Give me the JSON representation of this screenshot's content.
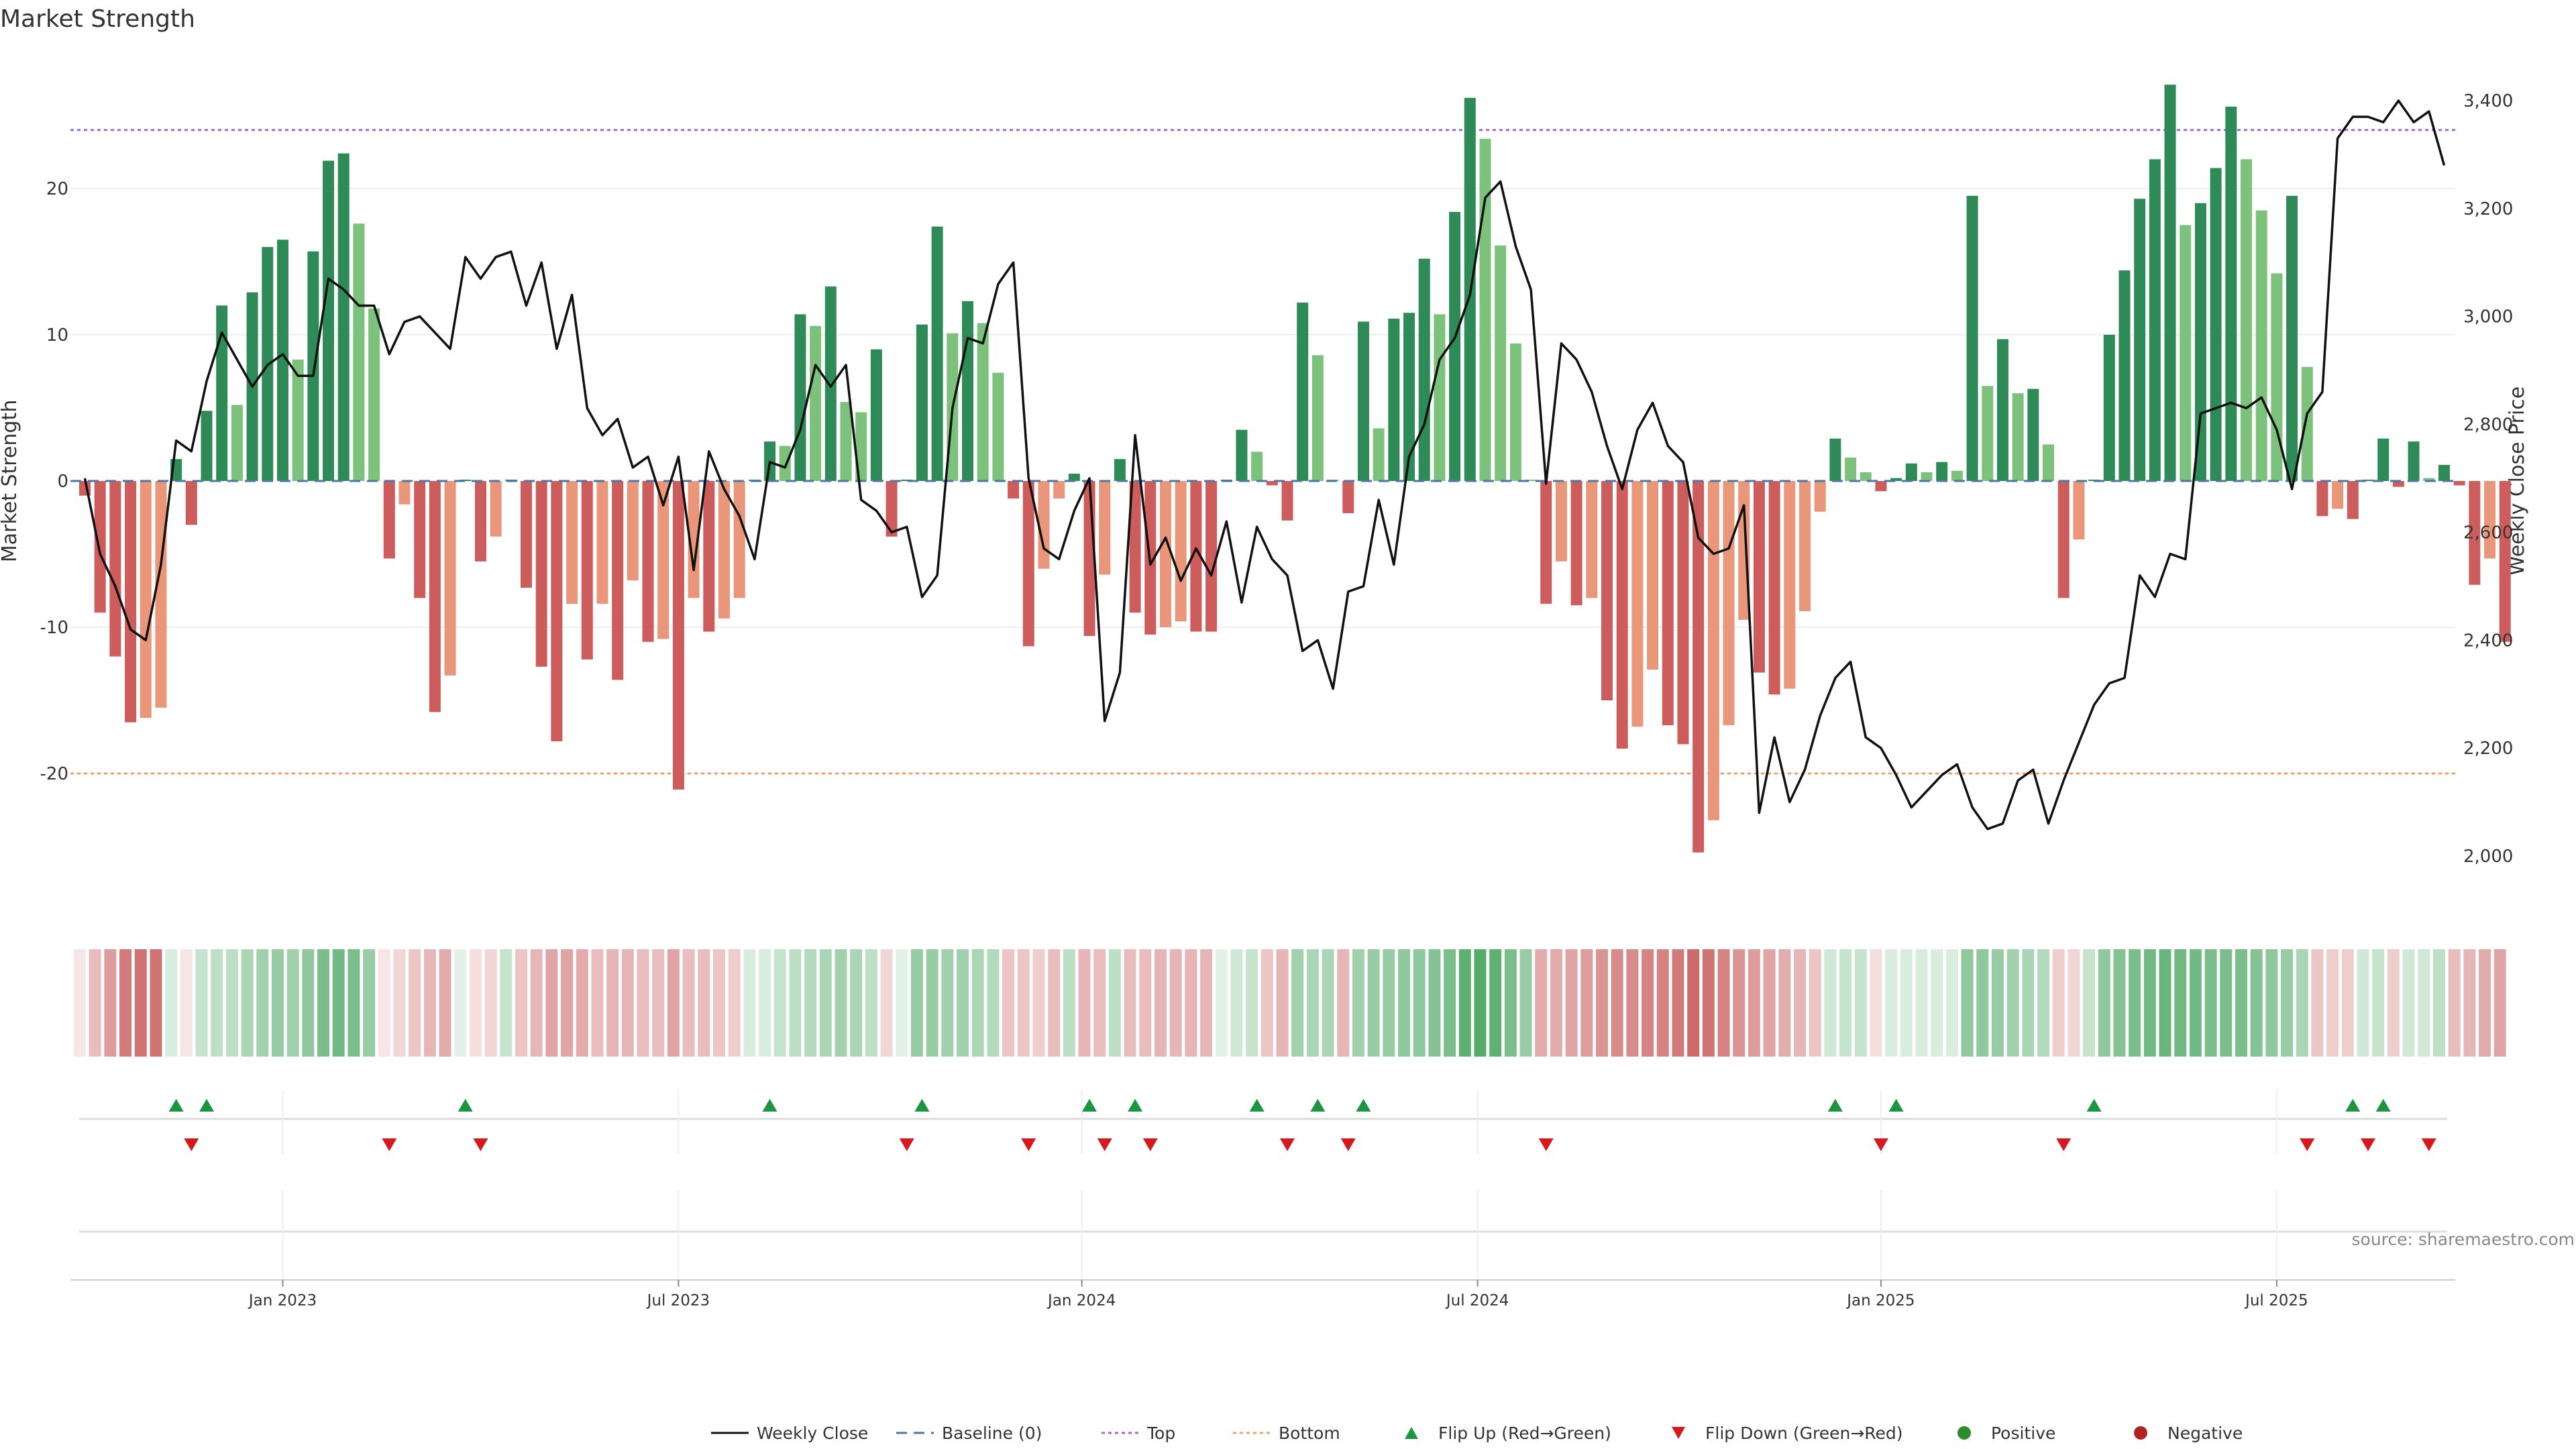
{
  "chart_data": {
    "type": "bar",
    "title": "Market Strength",
    "ylabel_left": "Market Strength",
    "ylabel_right": "Weekly Close Price",
    "ylim_left": [
      -29,
      29
    ],
    "ylim_right": [
      1890,
      3460
    ],
    "yticks_left": [
      -20,
      -10,
      0,
      10,
      20
    ],
    "yticks_left_labels": [
      "-20",
      "-10",
      "0",
      "10",
      "20"
    ],
    "yticks_right": [
      2000,
      2200,
      2400,
      2600,
      2800,
      3000,
      3200,
      3400
    ],
    "yticks_right_labels": [
      "2,000",
      "2,200",
      "2,400",
      "2,600",
      "2,800",
      "3,000",
      "3,200",
      "3,400"
    ],
    "x_ticks": [
      {
        "index": 13,
        "label": "Jan 2023"
      },
      {
        "index": 39,
        "label": "Jul 2023"
      },
      {
        "index": 65.5,
        "label": "Jan 2024"
      },
      {
        "index": 91.5,
        "label": "Jul 2024"
      },
      {
        "index": 118,
        "label": "Jan 2025"
      },
      {
        "index": 144,
        "label": "Jul 2025"
      }
    ],
    "reference_lines": {
      "top": 24,
      "bottom": -20,
      "baseline": 0
    },
    "strength": [
      -1,
      -9,
      -12,
      -16.5,
      -16.2,
      -15.5,
      1.5,
      -3,
      4.8,
      12,
      5.2,
      12.9,
      16,
      16.5,
      8.3,
      15.7,
      21.9,
      22.4,
      17.6,
      11.8,
      -5.3,
      -1.6,
      -8,
      -15.8,
      -13.3,
      0,
      -5.5,
      -3.8,
      0,
      -7.3,
      -12.7,
      -17.8,
      -8.4,
      -12.2,
      -8.4,
      -13.6,
      -6.8,
      -11,
      -10.8,
      -21.1,
      -8,
      -10.3,
      -9.4,
      -8,
      0,
      2.7,
      2.4,
      11.4,
      10.6,
      13.3,
      5.4,
      4.7,
      9,
      -3.8,
      0,
      10.7,
      17.4,
      10.1,
      12.3,
      10.8,
      7.4,
      -1.2,
      -11.3,
      -6,
      -1.2,
      0.5,
      -10.6,
      -6.4,
      1.5,
      -9,
      -10.5,
      -10,
      -9.6,
      -10.3,
      -10.3,
      0,
      3.5,
      2,
      -0.3,
      -2.7,
      12.2,
      8.6,
      0,
      -2.2,
      10.9,
      3.6,
      11.1,
      11.5,
      15.2,
      11.4,
      18.4,
      26.2,
      23.4,
      16.1,
      9.4,
      0,
      -8.4,
      -5.5,
      -8.5,
      -8,
      -15,
      -18.3,
      -16.8,
      -12.9,
      -16.7,
      -18,
      -25.4,
      -23.2,
      -16.7,
      -9.5,
      -13.1,
      -14.6,
      -14.2,
      -8.9,
      -2.1,
      2.9,
      1.6,
      0.6,
      -0.7,
      0.2,
      1.2,
      0.6,
      1.3,
      0.7,
      19.5,
      6.5,
      9.7,
      6,
      6.3,
      2.5,
      -8,
      -4,
      0,
      10,
      14.4,
      19.3,
      22,
      27.1,
      17.5,
      19,
      21.4,
      25.6,
      22,
      18.5,
      14.2,
      19.5,
      7.8,
      -2.4,
      -1.9,
      -2.6,
      0,
      2.9,
      -0.4,
      2.7,
      0.2,
      1.1,
      -0.3,
      -7.1,
      -5.3,
      -11
    ],
    "weekly_close": [
      2700,
      2560,
      2500,
      2420,
      2400,
      2540,
      2770,
      2750,
      2880,
      2970,
      2920,
      2870,
      2910,
      2930,
      2890,
      2890,
      3070,
      3050,
      3020,
      3020,
      2930,
      2990,
      3000,
      2970,
      2940,
      3110,
      3070,
      3110,
      3120,
      3020,
      3100,
      2940,
      3040,
      2830,
      2780,
      2810,
      2720,
      2740,
      2650,
      2740,
      2530,
      2750,
      2680,
      2630,
      2550,
      2730,
      2720,
      2790,
      2910,
      2870,
      2910,
      2660,
      2640,
      2600,
      2610,
      2480,
      2520,
      2830,
      2960,
      2950,
      3060,
      3100,
      2700,
      2570,
      2550,
      2640,
      2700,
      2250,
      2340,
      2780,
      2540,
      2590,
      2510,
      2570,
      2520,
      2620,
      2470,
      2610,
      2550,
      2520,
      2380,
      2400,
      2310,
      2490,
      2500,
      2660,
      2540,
      2740,
      2800,
      2920,
      2960,
      3040,
      3220,
      3250,
      3130,
      3050,
      2690,
      2950,
      2920,
      2860,
      2760,
      2680,
      2790,
      2840,
      2760,
      2730,
      2590,
      2560,
      2570,
      2650,
      2080,
      2220,
      2100,
      2160,
      2260,
      2330,
      2360,
      2220,
      2200,
      2150,
      2090,
      2120,
      2150,
      2170,
      2090,
      2050,
      2060,
      2140,
      2160,
      2060,
      2140,
      2210,
      2280,
      2320,
      2330,
      2520,
      2480,
      2560,
      2550,
      2820,
      2830,
      2840,
      2830,
      2850,
      2790,
      2680,
      2820,
      2860,
      3330,
      3370,
      3370,
      3360,
      3400,
      3360,
      3380,
      3280
    ],
    "shade_intensity": [
      0.15,
      0.4,
      0.6,
      0.8,
      0.85,
      0.85,
      0.2,
      0.15,
      0.3,
      0.35,
      0.35,
      0.45,
      0.5,
      0.55,
      0.5,
      0.6,
      0.7,
      0.75,
      0.7,
      0.55,
      0.15,
      0.25,
      0.35,
      0.45,
      0.5,
      0.15,
      0.2,
      0.25,
      0.3,
      0.35,
      0.45,
      0.55,
      0.55,
      0.5,
      0.4,
      0.45,
      0.45,
      0.4,
      0.4,
      0.55,
      0.4,
      0.4,
      0.35,
      0.3,
      0.2,
      0.2,
      0.3,
      0.35,
      0.4,
      0.45,
      0.5,
      0.45,
      0.35,
      0.25,
      0.15,
      0.55,
      0.55,
      0.5,
      0.5,
      0.45,
      0.4,
      0.35,
      0.35,
      0.3,
      0.4,
      0.35,
      0.45,
      0.4,
      0.35,
      0.4,
      0.4,
      0.45,
      0.45,
      0.45,
      0.45,
      0.15,
      0.25,
      0.3,
      0.35,
      0.45,
      0.5,
      0.45,
      0.45,
      0.45,
      0.5,
      0.55,
      0.55,
      0.6,
      0.6,
      0.65,
      0.7,
      0.85,
      0.9,
      0.85,
      0.7,
      0.55,
      0.5,
      0.5,
      0.55,
      0.6,
      0.65,
      0.7,
      0.7,
      0.75,
      0.75,
      0.8,
      0.9,
      0.85,
      0.75,
      0.65,
      0.6,
      0.55,
      0.5,
      0.45,
      0.35,
      0.25,
      0.3,
      0.3,
      0.2,
      0.2,
      0.2,
      0.2,
      0.2,
      0.2,
      0.6,
      0.6,
      0.55,
      0.5,
      0.45,
      0.4,
      0.3,
      0.25,
      0.3,
      0.6,
      0.65,
      0.7,
      0.75,
      0.8,
      0.75,
      0.75,
      0.7,
      0.7,
      0.7,
      0.65,
      0.6,
      0.55,
      0.45,
      0.35,
      0.3,
      0.3,
      0.25,
      0.3,
      0.3,
      0.25,
      0.25,
      0.35,
      0.4,
      0.45,
      0.5,
      0.55
    ],
    "flip_up_index": [
      6,
      8,
      25,
      45,
      55,
      66,
      69,
      77,
      81,
      84,
      115,
      119,
      132,
      149,
      151
    ],
    "flip_down_index": [
      7,
      20,
      26,
      54,
      62,
      67,
      70,
      79,
      83,
      96,
      118,
      130,
      146,
      150,
      154
    ],
    "legend": [
      {
        "label": "Weekly Close",
        "kind": "line",
        "color": "#111111",
        "dash": ""
      },
      {
        "label": "Baseline (0)",
        "kind": "line",
        "color": "#4a79a7",
        "dash": "16,10"
      },
      {
        "label": "Top",
        "kind": "line",
        "color": "#a06cc8",
        "dash": "5,5"
      },
      {
        "label": "Bottom",
        "kind": "line",
        "color": "#e9a26b",
        "dash": "5,5"
      },
      {
        "label": "Flip Up (Red→Green)",
        "kind": "triangle-up",
        "color": "#1a9641",
        "dash": ""
      },
      {
        "label": "Flip Down (Green→Red)",
        "kind": "triangle-down",
        "color": "#d7191c",
        "dash": ""
      },
      {
        "label": "Positive",
        "kind": "circle",
        "color": "#2e8b2e",
        "dash": ""
      },
      {
        "label": "Negative",
        "kind": "circle",
        "color": "#b22222",
        "dash": ""
      }
    ],
    "colors": {
      "pos_strong": "#2e8b57",
      "pos_weak": "#7cc17c",
      "neg_strong": "#cd5c5c",
      "neg_weak": "#e9967a",
      "heat_pos": "#43a35a",
      "heat_neg": "#c85a5a",
      "close_line": "#111111",
      "top_line": "#a06cc8",
      "bottom_line": "#e9a26b",
      "baseline": "#4a79a7",
      "flip_up": "#1a9641",
      "flip_down": "#d7191c"
    }
  },
  "source_note": "source: sharemaestro.com"
}
